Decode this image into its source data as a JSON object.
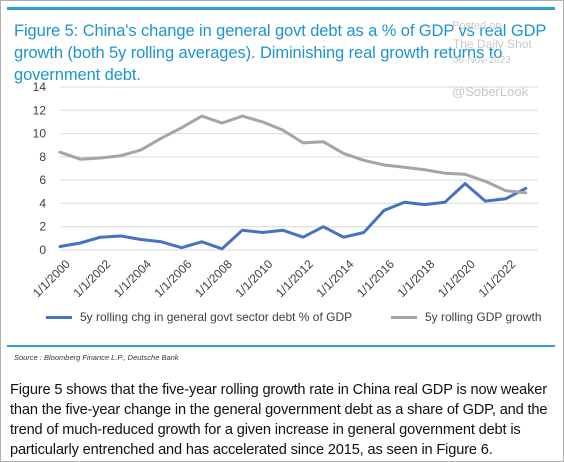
{
  "title": "Figure 5: China's change in general govt debt as a % of GDP vs real GDP growth (both 5y rolling averages). Diminishing real growth returns to government debt.",
  "watermark": {
    "posted_on": "Posted on",
    "site": "The Daily Shot",
    "date": "06-Nov-2023"
  },
  "handle": "@SoberLook",
  "source": "Source : Bloomberg Finance L.P., Deutsche Bank",
  "body_text": "Figure 5 shows that the five-year rolling growth rate in China real GDP is now weaker than the five-year change in the general government debt as a share of GDP, and the trend of much-reduced growth for a given increase in general government debt is particularly entrenched and has accelerated since 2015, as seen in Figure 6.",
  "colors": {
    "title": "#1d94cf",
    "rule": "#2aa0d8",
    "debt_series": "#4472c4",
    "gdp_series": "#a5a5a5",
    "gridline": "#d9d9d9"
  },
  "chart_data": {
    "type": "line",
    "title": "Figure 5: China's change in general govt debt as a % of GDP vs real GDP growth (both 5y rolling averages). Diminishing real growth returns to government debt.",
    "xlabel": "",
    "ylabel": "",
    "ylim": [
      0,
      14
    ],
    "yticks": [
      "0",
      "2",
      "4",
      "6",
      "8",
      "10",
      "12",
      "14"
    ],
    "xticks": [
      "1/1/2000",
      "1/1/2002",
      "1/1/2004",
      "1/1/2006",
      "1/1/2008",
      "1/1/2010",
      "1/1/2012",
      "1/1/2014",
      "1/1/2016",
      "1/1/2018",
      "1/1/2020",
      "1/1/2022"
    ],
    "grid": "horizontal",
    "legend_position": "bottom",
    "x": [
      2000,
      2001,
      2002,
      2003,
      2004,
      2005,
      2006,
      2007,
      2008,
      2009,
      2010,
      2011,
      2012,
      2013,
      2014,
      2015,
      2016,
      2017,
      2018,
      2019,
      2020,
      2021,
      2022,
      2023
    ],
    "series": [
      {
        "name": "5y rolling chg in general govt sector debt % of GDP",
        "color": "#4472c4",
        "values": [
          0.3,
          0.6,
          1.1,
          1.2,
          0.9,
          0.7,
          0.2,
          0.7,
          0.1,
          1.7,
          1.5,
          1.7,
          1.1,
          2.0,
          1.1,
          1.5,
          3.4,
          4.1,
          3.9,
          4.1,
          5.7,
          4.2,
          4.4,
          5.3
        ]
      },
      {
        "name": "5y rolling GDP growth",
        "color": "#a5a5a5",
        "values": [
          8.4,
          7.8,
          7.9,
          8.1,
          8.6,
          9.6,
          10.5,
          11.5,
          10.9,
          11.5,
          11.0,
          10.3,
          9.2,
          9.3,
          8.3,
          7.7,
          7.3,
          7.1,
          6.9,
          6.6,
          6.5,
          5.9,
          5.1,
          4.9
        ]
      }
    ]
  }
}
